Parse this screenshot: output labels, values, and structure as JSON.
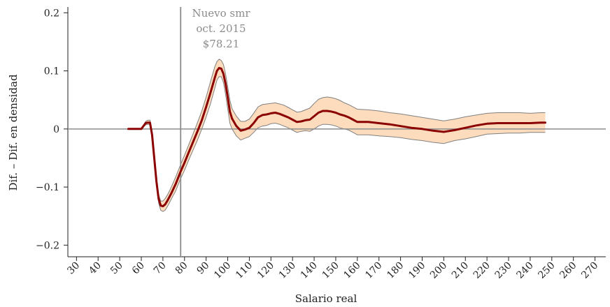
{
  "chart_data": {
    "type": "line",
    "title": "",
    "xlabel": "Salario real",
    "ylabel": "Dif. – Dif. en densidad",
    "xlim": [
      26,
      275
    ],
    "ylim": [
      -0.22,
      0.21
    ],
    "x_ticks": [
      30,
      40,
      50,
      60,
      70,
      80,
      90,
      100,
      110,
      120,
      130,
      140,
      150,
      160,
      170,
      180,
      190,
      200,
      210,
      220,
      230,
      240,
      250,
      260,
      270
    ],
    "x_tick_labels": [
      "30",
      "40",
      "50",
      "60",
      "70",
      "80",
      "90",
      "100",
      "110",
      "120",
      "130",
      "140",
      "150",
      "160",
      "170",
      "180",
      "190",
      "200",
      "210",
      "220",
      "230",
      "240",
      "250",
      "260",
      "270"
    ],
    "y_ticks": [
      -0.2,
      -0.1,
      0,
      0.1,
      0.2
    ],
    "y_tick_labels": [
      "−0.2",
      "−0.1",
      "0",
      "0.1",
      "0.2"
    ],
    "zero_line": true,
    "grid": false,
    "vertical_line": {
      "x": 78.21,
      "annotation": [
        "Nuevo smr",
        "oct. 2015",
        "$78.21"
      ]
    },
    "colors": {
      "line": "#8b0000",
      "band_fill": "#fcdcbc",
      "band_edge": "#808080",
      "ref_lines": "#8c8c8c"
    },
    "series": [
      {
        "x": [
          54,
          57,
          60,
          62,
          63,
          64,
          65,
          66,
          67,
          68,
          69,
          70,
          71,
          72,
          73,
          74,
          76,
          78,
          80,
          82,
          84,
          86,
          88,
          90,
          92,
          94,
          95,
          96,
          97,
          98,
          99,
          100,
          101,
          102,
          104,
          106,
          108,
          110,
          112,
          114,
          116,
          118,
          120,
          122,
          124,
          126,
          128,
          130,
          132,
          134,
          136,
          138,
          140,
          142,
          144,
          146,
          148,
          150,
          152,
          154,
          156,
          158,
          160,
          165,
          170,
          175,
          180,
          185,
          190,
          195,
          200,
          205,
          210,
          215,
          220,
          225,
          230,
          235,
          240,
          245,
          247
        ],
        "y": [
          0.0,
          0.0,
          0.0,
          0.01,
          0.011,
          0.011,
          -0.01,
          -0.05,
          -0.09,
          -0.12,
          -0.132,
          -0.133,
          -0.13,
          -0.124,
          -0.117,
          -0.11,
          -0.094,
          -0.075,
          -0.058,
          -0.04,
          -0.022,
          -0.004,
          0.015,
          0.038,
          0.062,
          0.088,
          0.1,
          0.105,
          0.104,
          0.095,
          0.078,
          0.055,
          0.03,
          0.018,
          0.005,
          -0.003,
          -0.001,
          0.002,
          0.01,
          0.02,
          0.024,
          0.025,
          0.027,
          0.028,
          0.026,
          0.023,
          0.02,
          0.016,
          0.012,
          0.013,
          0.015,
          0.016,
          0.022,
          0.028,
          0.031,
          0.031,
          0.03,
          0.028,
          0.025,
          0.023,
          0.02,
          0.016,
          0.012,
          0.012,
          0.01,
          0.008,
          0.005,
          0.002,
          0.0,
          -0.003,
          -0.005,
          -0.002,
          0.002,
          0.006,
          0.009,
          0.01,
          0.01,
          0.01,
          0.01,
          0.011,
          0.011
        ],
        "upper": [
          0.0,
          0.0,
          0.0,
          0.013,
          0.015,
          0.015,
          -0.005,
          -0.044,
          -0.084,
          -0.113,
          -0.124,
          -0.124,
          -0.12,
          -0.114,
          -0.107,
          -0.099,
          -0.082,
          -0.063,
          -0.045,
          -0.027,
          -0.008,
          0.011,
          0.031,
          0.055,
          0.081,
          0.107,
          0.116,
          0.12,
          0.118,
          0.111,
          0.095,
          0.073,
          0.05,
          0.035,
          0.022,
          0.013,
          0.013,
          0.017,
          0.027,
          0.038,
          0.042,
          0.043,
          0.044,
          0.045,
          0.043,
          0.041,
          0.037,
          0.033,
          0.029,
          0.03,
          0.033,
          0.036,
          0.044,
          0.051,
          0.054,
          0.055,
          0.054,
          0.052,
          0.049,
          0.045,
          0.042,
          0.038,
          0.034,
          0.033,
          0.031,
          0.028,
          0.026,
          0.023,
          0.02,
          0.017,
          0.014,
          0.017,
          0.021,
          0.024,
          0.027,
          0.028,
          0.028,
          0.028,
          0.027,
          0.028,
          0.028
        ],
        "lower": [
          0.0,
          0.0,
          0.0,
          0.007,
          0.008,
          0.008,
          -0.016,
          -0.056,
          -0.096,
          -0.127,
          -0.14,
          -0.142,
          -0.14,
          -0.134,
          -0.127,
          -0.12,
          -0.106,
          -0.087,
          -0.071,
          -0.053,
          -0.036,
          -0.019,
          0.0,
          0.021,
          0.043,
          0.07,
          0.084,
          0.09,
          0.09,
          0.08,
          0.06,
          0.035,
          0.01,
          0.0,
          -0.012,
          -0.019,
          -0.016,
          -0.013,
          -0.006,
          0.002,
          0.005,
          0.006,
          0.009,
          0.01,
          0.008,
          0.005,
          0.002,
          -0.002,
          -0.006,
          -0.004,
          -0.003,
          -0.004,
          0.0,
          0.005,
          0.008,
          0.008,
          0.007,
          0.005,
          0.002,
          0.0,
          -0.002,
          -0.006,
          -0.01,
          -0.01,
          -0.012,
          -0.013,
          -0.015,
          -0.018,
          -0.02,
          -0.023,
          -0.025,
          -0.02,
          -0.017,
          -0.013,
          -0.009,
          -0.008,
          -0.007,
          -0.007,
          -0.006,
          -0.006,
          -0.006
        ]
      }
    ]
  }
}
